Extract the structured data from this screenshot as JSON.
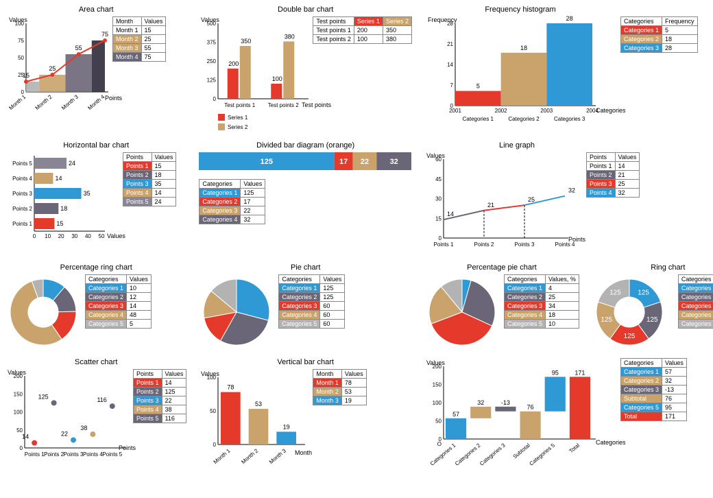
{
  "colors": {
    "red": "#e53a2b",
    "tan": "#c9a36b",
    "blue": "#2f99d6",
    "slate": "#6b6578",
    "grey": "#b3b3b3"
  },
  "area": {
    "title": "Area chart",
    "xlabel": "Points",
    "ylabel": "Values",
    "ylim": [
      0,
      100
    ],
    "ytick_step": 25,
    "categories": [
      "Month 1",
      "Month 2",
      "Month 3",
      "Month 4"
    ],
    "values": [
      15,
      25,
      55,
      75
    ],
    "bar_colors": [
      "#b3b3b3",
      "#c9a36b",
      "#6b6578",
      "#2f2a3a"
    ],
    "line_color": "#e53a2b",
    "table": {
      "headers": [
        "Month",
        "Values"
      ],
      "rows": [
        [
          "Month 1",
          "15"
        ],
        [
          "Month 2",
          "25"
        ],
        [
          "Month 3",
          "55"
        ],
        [
          "Month 4",
          "75"
        ]
      ],
      "row_colors": [
        "#ffffff",
        "#c9a36b",
        "#c9a36b",
        "#6b6578"
      ]
    }
  },
  "doublebar": {
    "title": "Double bar chart",
    "xlabel": "Test points",
    "ylabel": "Values",
    "ylim": [
      0,
      500
    ],
    "ytick_step": 125,
    "groups": [
      "Test points 1",
      "Test points 2"
    ],
    "series": [
      {
        "name": "Series 1",
        "color": "#e53a2b",
        "values": [
          200,
          100
        ]
      },
      {
        "name": "Series 2",
        "color": "#c9a36b",
        "values": [
          350,
          380
        ]
      }
    ],
    "table": {
      "headers": [
        "Test points",
        "Series 1",
        "Series 2"
      ],
      "header_colors": [
        "#ffffff",
        "#e53a2b",
        "#c9a36b"
      ],
      "rows": [
        [
          "Test points 1",
          "200",
          "350"
        ],
        [
          "Test points 2",
          "100",
          "380"
        ]
      ]
    }
  },
  "histogram": {
    "title": "Frequency histogram",
    "xlabel": "Categories",
    "ylabel": "Frequency",
    "ylim": [
      0,
      28
    ],
    "ytick_step": 7,
    "xticks": [
      "2001",
      "2002",
      "2003",
      "2004"
    ],
    "xlabels_below": [
      "Categories 1",
      "Categories 2",
      "Categories 3"
    ],
    "bars": [
      {
        "value": 5,
        "color": "#e53a2b"
      },
      {
        "value": 18,
        "color": "#c9a36b"
      },
      {
        "value": 28,
        "color": "#2f99d6"
      }
    ],
    "table": {
      "headers": [
        "Categories",
        "Frequency"
      ],
      "rows": [
        [
          "Categories 1",
          "5"
        ],
        [
          "Categories 2",
          "18"
        ],
        [
          "Categories 3",
          "28"
        ]
      ],
      "row_colors": [
        "#e53a2b",
        "#c9a36b",
        "#2f99d6"
      ]
    }
  },
  "hbar": {
    "title": "Horizontal bar chart",
    "xlabel": "Values",
    "ylabel": "Points",
    "xlim": [
      0,
      50
    ],
    "xtick_step": 10,
    "bars": [
      {
        "label": "Points 1",
        "value": 15,
        "color": "#e53a2b"
      },
      {
        "label": "Points 2",
        "value": 18,
        "color": "#6b6578"
      },
      {
        "label": "Points 3",
        "value": 35,
        "color": "#2f99d6"
      },
      {
        "label": "Points 4",
        "value": 14,
        "color": "#c9a36b"
      },
      {
        "label": "Points 5",
        "value": 24,
        "color": "#8a8594"
      }
    ],
    "table": {
      "headers": [
        "Points",
        "Values"
      ],
      "rows": [
        [
          "Points 1",
          "15"
        ],
        [
          "Points 2",
          "18"
        ],
        [
          "Points 3",
          "35"
        ],
        [
          "Points 4",
          "14"
        ],
        [
          "Points 5",
          "24"
        ]
      ],
      "row_colors": [
        "#e53a2b",
        "#6b6578",
        "#2f99d6",
        "#c9a36b",
        "#8a8594"
      ]
    }
  },
  "divided": {
    "title": "Divided bar diagram (orange)",
    "segments": [
      {
        "label": "125",
        "value": 125,
        "color": "#2f99d6"
      },
      {
        "label": "17",
        "value": 17,
        "color": "#e53a2b"
      },
      {
        "label": "22",
        "value": 22,
        "color": "#c9a36b"
      },
      {
        "label": "32",
        "value": 32,
        "color": "#6b6578"
      }
    ],
    "table": {
      "headers": [
        "Categories",
        "Values"
      ],
      "rows": [
        [
          "Categories 1",
          "125"
        ],
        [
          "Categories 2",
          "17"
        ],
        [
          "Categories 3",
          "22"
        ],
        [
          "Categories 4",
          "32"
        ]
      ],
      "row_colors": [
        "#2f99d6",
        "#e53a2b",
        "#c9a36b",
        "#6b6578"
      ]
    }
  },
  "linegraph": {
    "title": "Line graph",
    "xlabel": "Points",
    "ylabel": "Values",
    "ylim": [
      0,
      60
    ],
    "ytick_step": 15,
    "points": [
      {
        "label": "Points 1",
        "value": 14,
        "color": "#6b6578"
      },
      {
        "label": "Points 2",
        "value": 21,
        "color": "#6b6578"
      },
      {
        "label": "Points 3",
        "value": 25,
        "color": "#e53a2b"
      },
      {
        "label": "Points 4",
        "value": 32,
        "color": "#2f99d6"
      }
    ],
    "table": {
      "headers": [
        "Points",
        "Values"
      ],
      "rows": [
        [
          "Points 1",
          "14"
        ],
        [
          "Points 2",
          "21"
        ],
        [
          "Points 3",
          "25"
        ],
        [
          "Points 4",
          "32"
        ]
      ],
      "row_colors": [
        "#ffffff",
        "#6b6578",
        "#e53a2b",
        "#2f99d6"
      ]
    }
  },
  "ringpct": {
    "title": "Percentage ring chart",
    "slices": [
      {
        "label": "Categories 1",
        "value": 10,
        "color": "#2f99d6"
      },
      {
        "label": "Categories 2",
        "value": 12,
        "color": "#6b6578"
      },
      {
        "label": "Categories 3",
        "value": 14,
        "color": "#e53a2b"
      },
      {
        "label": "Categories 4",
        "value": 48,
        "color": "#c9a36b"
      },
      {
        "label": "Categories 5",
        "value": 5,
        "color": "#b3b3b3"
      }
    ],
    "table": {
      "headers": [
        "Categories",
        "Values"
      ],
      "row_colors": [
        "#2f99d6",
        "#6b6578",
        "#e53a2b",
        "#c9a36b",
        "#b3b3b3"
      ]
    }
  },
  "pie": {
    "title": "Pie chart",
    "slices": [
      {
        "label": "Categories 1",
        "value": 125,
        "color": "#2f99d6"
      },
      {
        "label": "Categories 2",
        "value": 125,
        "color": "#6b6578"
      },
      {
        "label": "Categories 3",
        "value": 60,
        "color": "#e53a2b"
      },
      {
        "label": "Categories 4",
        "value": 60,
        "color": "#c9a36b"
      },
      {
        "label": "Categories 5",
        "value": 60,
        "color": "#b3b3b3"
      }
    ],
    "table": {
      "headers": [
        "Categories",
        "Values"
      ],
      "row_colors": [
        "#2f99d6",
        "#6b6578",
        "#e53a2b",
        "#c9a36b",
        "#b3b3b3"
      ]
    }
  },
  "piepct": {
    "title": "Percentage pie chart",
    "slices": [
      {
        "label": "Categories 1",
        "value": 4,
        "color": "#2f99d6"
      },
      {
        "label": "Categories 2",
        "value": 25,
        "color": "#6b6578"
      },
      {
        "label": "Categories 3",
        "value": 34,
        "color": "#e53a2b"
      },
      {
        "label": "Categories 4",
        "value": 18,
        "color": "#c9a36b"
      },
      {
        "label": "Categories 5",
        "value": 10,
        "color": "#b3b3b3"
      }
    ],
    "table": {
      "headers": [
        "Categories",
        "Values, %"
      ],
      "row_colors": [
        "#2f99d6",
        "#6b6578",
        "#e53a2b",
        "#c9a36b",
        "#b3b3b3"
      ]
    }
  },
  "ring": {
    "title": "Ring chart",
    "slices": [
      {
        "label": "Categories 1",
        "value": 125,
        "color": "#2f99d6"
      },
      {
        "label": "Categories 2",
        "value": 125,
        "color": "#6b6578"
      },
      {
        "label": "Categories 3",
        "value": 125,
        "color": "#e53a2b"
      },
      {
        "label": "Categories 4",
        "value": 125,
        "color": "#c9a36b"
      },
      {
        "label": "Categories 5",
        "value": 125,
        "color": "#b3b3b3"
      }
    ],
    "table": {
      "headers": [
        "Categories",
        "Values"
      ],
      "row_colors": [
        "#2f99d6",
        "#6b6578",
        "#e53a2b",
        "#c9a36b",
        "#b3b3b3"
      ]
    }
  },
  "scatter": {
    "title": "Scatter chart",
    "xlabel": "Points",
    "ylabel": "Values",
    "ylim": [
      0,
      200
    ],
    "ytick_step": 50,
    "points": [
      {
        "label": "Points 1",
        "value": 14,
        "color": "#e53a2b"
      },
      {
        "label": "Points 2",
        "value": 125,
        "color": "#6b6578"
      },
      {
        "label": "Points 3",
        "value": 22,
        "color": "#2f99d6"
      },
      {
        "label": "Points 4",
        "value": 38,
        "color": "#c9a36b"
      },
      {
        "label": "Points 5",
        "value": 116,
        "color": "#6b6578"
      }
    ],
    "table": {
      "headers": [
        "Points",
        "Values"
      ],
      "row_colors": [
        "#e53a2b",
        "#6b6578",
        "#2f99d6",
        "#c9a36b",
        "#6b6578"
      ]
    }
  },
  "vbar": {
    "title": "Vertical bar chart",
    "xlabel": "Month",
    "ylabel": "Values",
    "ylim": [
      0,
      100
    ],
    "ytick_step": 50,
    "bars": [
      {
        "label": "Month 1",
        "value": 78,
        "color": "#e53a2b"
      },
      {
        "label": "Month 2",
        "value": 53,
        "color": "#c9a36b"
      },
      {
        "label": "Month 3",
        "value": 19,
        "color": "#2f99d6"
      }
    ],
    "table": {
      "headers": [
        "Month",
        "Values"
      ],
      "row_colors": [
        "#e53a2b",
        "#c9a36b",
        "#2f99d6"
      ]
    }
  },
  "waterfall": {
    "title": "",
    "xlabel": "Categories",
    "ylabel": "Values",
    "ylim": [
      0,
      200
    ],
    "ytick_step": 50,
    "bars": [
      {
        "label": "Categories 1",
        "value": 57,
        "base": 0,
        "color": "#2f99d6"
      },
      {
        "label": "Categories 2",
        "value": 32,
        "base": 57,
        "color": "#c9a36b"
      },
      {
        "label": "Categories 3",
        "value": -13,
        "base": 89,
        "color": "#6b6578"
      },
      {
        "label": "Subtotal",
        "value": 76,
        "base": 0,
        "color": "#c9a36b"
      },
      {
        "label": "Categories 5",
        "value": 95,
        "base": 76,
        "color": "#2f99d6"
      },
      {
        "label": "Total",
        "value": 171,
        "base": 0,
        "color": "#e53a2b",
        "label_color": "#e53a2b"
      }
    ],
    "table": {
      "headers": [
        "Categories",
        "Values"
      ],
      "rows": [
        [
          "Categories 1",
          "57"
        ],
        [
          "Categories 2",
          "32"
        ],
        [
          "Categories 3",
          "-13"
        ],
        [
          "Subtotal",
          "76"
        ],
        [
          "Categories 5",
          "95"
        ],
        [
          "Total",
          "171"
        ]
      ],
      "row_colors": [
        "#2f99d6",
        "#c9a36b",
        "#6b6578",
        "#c9a36b",
        "#2f99d6",
        "#e53a2b"
      ]
    }
  }
}
